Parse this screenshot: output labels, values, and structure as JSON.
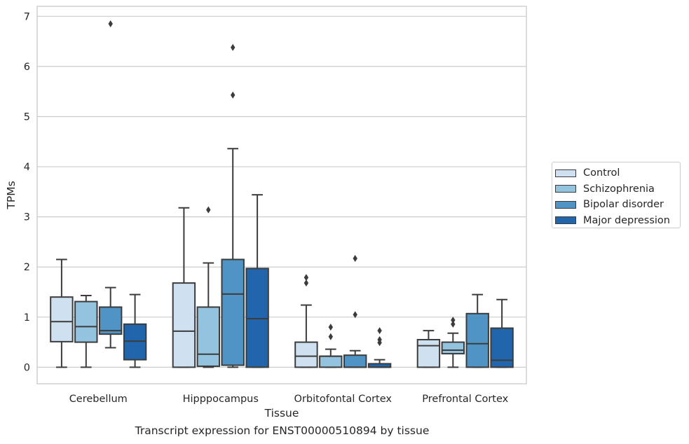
{
  "caption": "Transcript expression for ENST00000510894 by tissue",
  "chart_data": {
    "type": "box",
    "xlabel": "Tissue",
    "ylabel": "TPMs",
    "ylim": [
      -0.33,
      7.2
    ],
    "yticks": [
      0,
      1,
      2,
      3,
      4,
      5,
      6,
      7
    ],
    "grid": "horizontal",
    "legend_position": "outside-right",
    "categories": [
      "Cerebellum",
      "Hipppocampus",
      "Orbitofontal Cortex",
      "Prefrontal Cortex"
    ],
    "series": [
      {
        "name": "Control",
        "color": "#cfe1f1",
        "boxes": [
          {
            "whislo": 0.0,
            "q1": 0.51,
            "med": 0.91,
            "q3": 1.4,
            "whishi": 2.15,
            "fliers": []
          },
          {
            "whislo": 0.0,
            "q1": 0.0,
            "med": 0.72,
            "q3": 1.68,
            "whishi": 3.18,
            "fliers": []
          },
          {
            "whislo": 0.0,
            "q1": 0.0,
            "med": 0.22,
            "q3": 0.5,
            "whishi": 1.24,
            "fliers": [
              1.68,
              1.79
            ]
          },
          {
            "whislo": 0.0,
            "q1": 0.0,
            "med": 0.43,
            "q3": 0.55,
            "whishi": 0.73,
            "fliers": []
          }
        ]
      },
      {
        "name": "Schizophrenia",
        "color": "#93c3df",
        "boxes": [
          {
            "whislo": 0.0,
            "q1": 0.5,
            "med": 0.81,
            "q3": 1.31,
            "whishi": 1.43,
            "fliers": []
          },
          {
            "whislo": 0.0,
            "q1": 0.02,
            "med": 0.26,
            "q3": 1.2,
            "whishi": 2.08,
            "fliers": [
              3.14
            ]
          },
          {
            "whislo": 0.0,
            "q1": 0.0,
            "med": 0.22,
            "q3": 0.22,
            "whishi": 0.36,
            "fliers": [
              0.61,
              0.8
            ]
          },
          {
            "whislo": 0.0,
            "q1": 0.27,
            "med": 0.34,
            "q3": 0.5,
            "whishi": 0.68,
            "fliers": [
              0.86,
              0.94
            ]
          }
        ]
      },
      {
        "name": "Bipolar disorder",
        "color": "#4f94c4",
        "boxes": [
          {
            "whislo": 0.39,
            "q1": 0.66,
            "med": 0.73,
            "q3": 1.2,
            "whishi": 1.59,
            "fliers": [
              6.85
            ]
          },
          {
            "whislo": 0.0,
            "q1": 0.04,
            "med": 1.46,
            "q3": 2.15,
            "whishi": 4.36,
            "fliers": [
              5.43,
              6.38
            ]
          },
          {
            "whislo": 0.0,
            "q1": 0.0,
            "med": 0.0,
            "q3": 0.24,
            "whishi": 0.33,
            "fliers": [
              1.05,
              2.17
            ]
          },
          {
            "whislo": 0.0,
            "q1": 0.0,
            "med": 0.47,
            "q3": 1.07,
            "whishi": 1.45,
            "fliers": []
          }
        ]
      },
      {
        "name": "Major depression",
        "color": "#2166ac",
        "boxes": [
          {
            "whislo": 0.0,
            "q1": 0.15,
            "med": 0.52,
            "q3": 0.86,
            "whishi": 1.45,
            "fliers": []
          },
          {
            "whislo": 0.0,
            "q1": 0.0,
            "med": 0.97,
            "q3": 1.97,
            "whishi": 3.44,
            "fliers": []
          },
          {
            "whislo": 0.0,
            "q1": 0.0,
            "med": 0.0,
            "q3": 0.07,
            "whishi": 0.15,
            "fliers": [
              0.49,
              0.55,
              0.73
            ]
          },
          {
            "whislo": 0.0,
            "q1": 0.0,
            "med": 0.14,
            "q3": 0.78,
            "whishi": 1.35,
            "fliers": []
          }
        ]
      }
    ]
  }
}
